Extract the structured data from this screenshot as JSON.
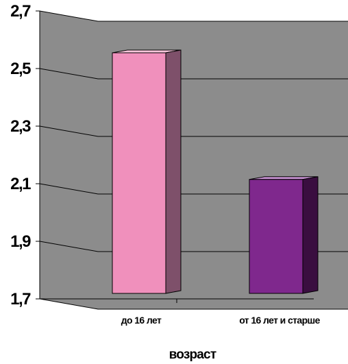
{
  "chart_data": {
    "type": "bar",
    "categories": [
      "до 16 лет",
      "от 16 лет и старше"
    ],
    "values": [
      2.6,
      2.16
    ],
    "ylim": [
      1.7,
      2.7
    ],
    "yticks": [
      "1,7",
      "1,9",
      "2,1",
      "2,3",
      "2,5",
      "2,7"
    ],
    "xlabel": "возраст",
    "ylabel": "",
    "title": "",
    "grid": true,
    "colors": {
      "wall": "#8c8c8c",
      "floor": "#8c8c8c",
      "bar1_front": "#f090bc",
      "bar1_side": "#7e506a",
      "bar1_top": "#f8c6dc",
      "bar2_front": "#7f288d",
      "bar2_side": "#3a0e40",
      "bar2_top": "#c58fd0"
    }
  }
}
